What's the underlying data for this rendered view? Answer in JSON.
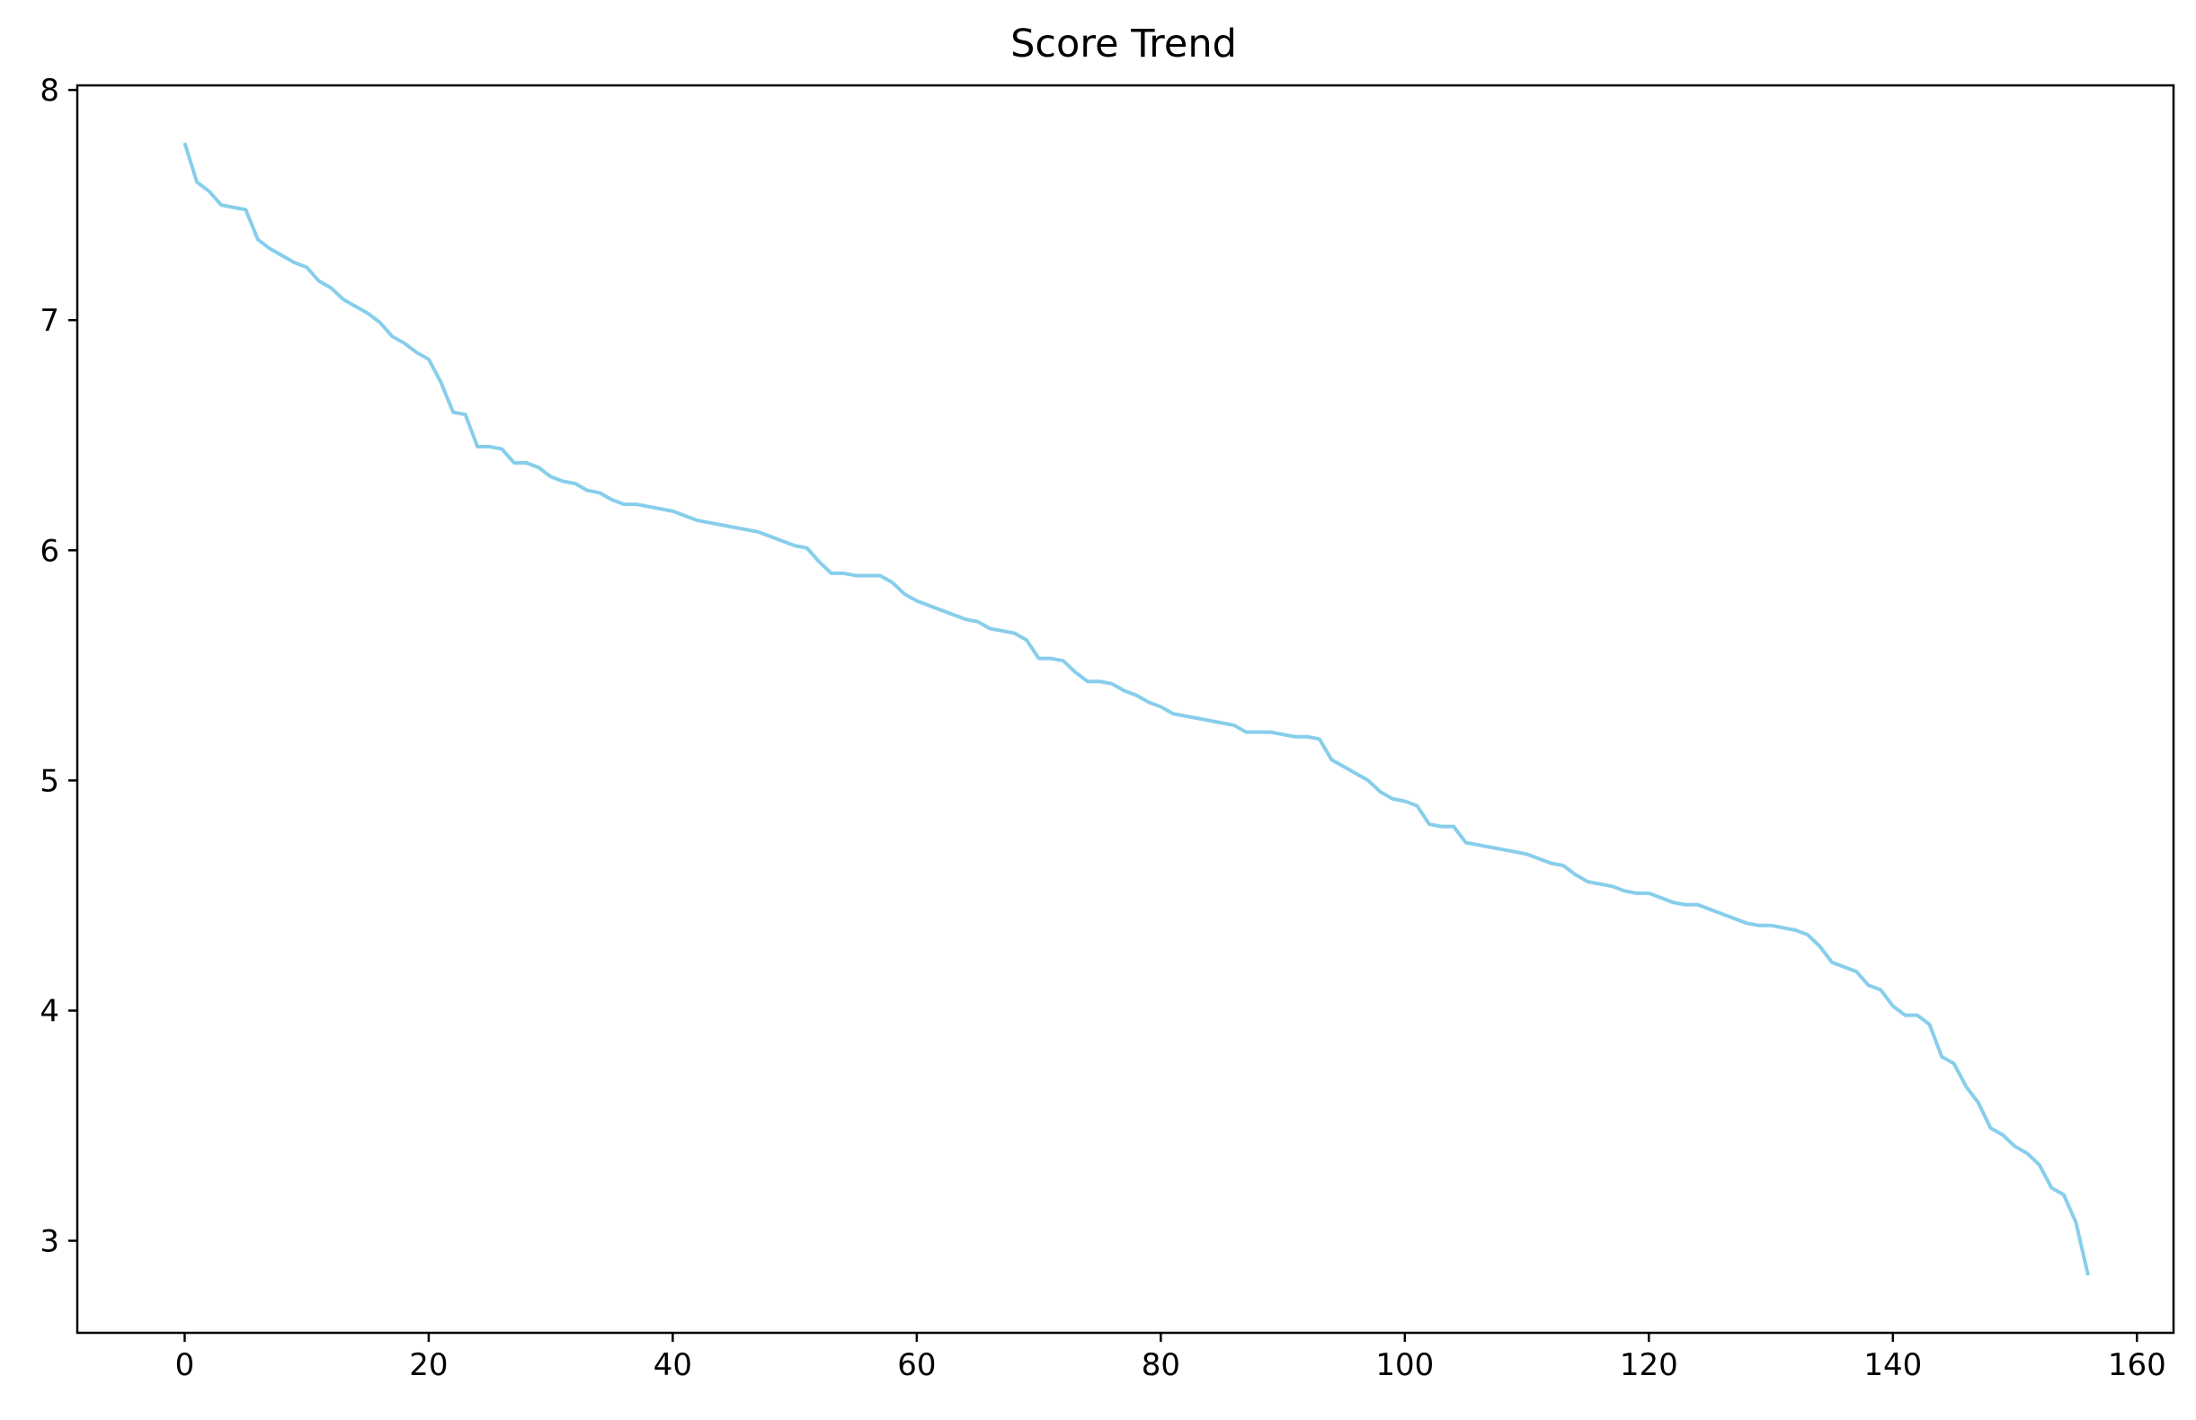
{
  "chart_data": {
    "type": "line",
    "title": "Score Trend",
    "xlabel": "",
    "ylabel": "",
    "xlim": [
      -8.8,
      163.0
    ],
    "ylim": [
      2.6,
      8.02
    ],
    "x_ticks": [
      0,
      20,
      40,
      60,
      80,
      100,
      120,
      140,
      160
    ],
    "y_ticks": [
      3,
      4,
      5,
      6,
      7,
      8
    ],
    "grid": false,
    "line_color": "#87ceeb",
    "series": [
      {
        "values": [
          7.77,
          7.6,
          7.56,
          7.5,
          7.49,
          7.48,
          7.35,
          7.31,
          7.28,
          7.25,
          7.23,
          7.17,
          7.14,
          7.09,
          7.06,
          7.03,
          6.99,
          6.93,
          6.9,
          6.86,
          6.83,
          6.73,
          6.6,
          6.59,
          6.45,
          6.45,
          6.44,
          6.38,
          6.38,
          6.36,
          6.32,
          6.3,
          6.29,
          6.26,
          6.25,
          6.22,
          6.2,
          6.2,
          6.19,
          6.18,
          6.17,
          6.15,
          6.13,
          6.12,
          6.11,
          6.1,
          6.09,
          6.08,
          6.06,
          6.04,
          6.02,
          6.01,
          5.95,
          5.9,
          5.9,
          5.89,
          5.89,
          5.89,
          5.86,
          5.81,
          5.78,
          5.76,
          5.74,
          5.72,
          5.7,
          5.69,
          5.66,
          5.65,
          5.64,
          5.61,
          5.53,
          5.53,
          5.52,
          5.47,
          5.43,
          5.43,
          5.42,
          5.39,
          5.37,
          5.34,
          5.32,
          5.29,
          5.28,
          5.27,
          5.26,
          5.25,
          5.24,
          5.21,
          5.21,
          5.21,
          5.2,
          5.19,
          5.19,
          5.18,
          5.09,
          5.06,
          5.03,
          5.0,
          4.95,
          4.92,
          4.91,
          4.89,
          4.81,
          4.8,
          4.8,
          4.73,
          4.72,
          4.71,
          4.7,
          4.69,
          4.68,
          4.66,
          4.64,
          4.63,
          4.59,
          4.56,
          4.55,
          4.54,
          4.52,
          4.51,
          4.51,
          4.49,
          4.47,
          4.46,
          4.46,
          4.44,
          4.42,
          4.4,
          4.38,
          4.37,
          4.37,
          4.36,
          4.35,
          4.33,
          4.28,
          4.21,
          4.19,
          4.17,
          4.11,
          4.09,
          4.02,
          3.98,
          3.98,
          3.94,
          3.8,
          3.77,
          3.67,
          3.6,
          3.49,
          3.46,
          3.41,
          3.38,
          3.33,
          3.23,
          3.2,
          3.08,
          2.85
        ]
      }
    ]
  }
}
